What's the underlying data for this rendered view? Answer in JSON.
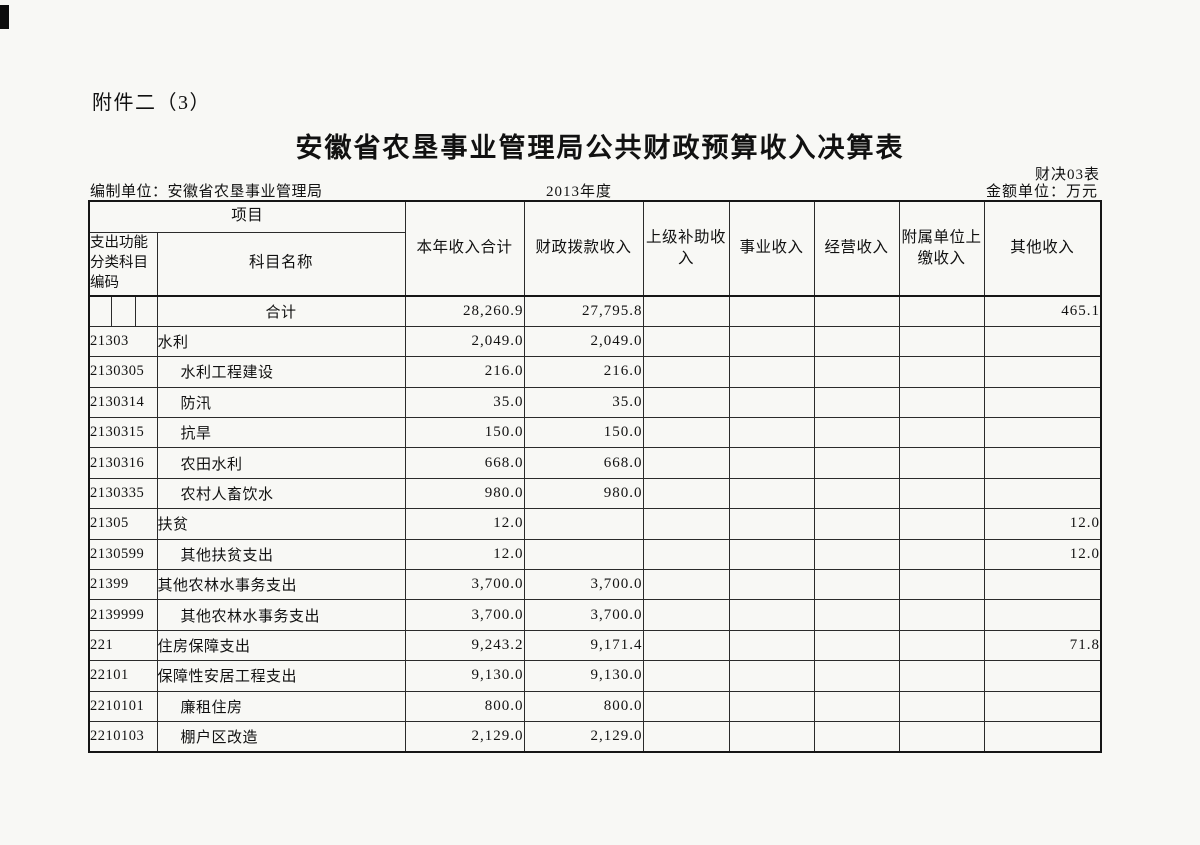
{
  "colors": {
    "paper": "#f8f8f5",
    "ink": "#111111"
  },
  "page": {
    "attachment_label": "附件二（3）",
    "title": "安徽省农垦事业管理局公共财政预算收入决算表",
    "form_code": "财决03表",
    "prepared_by_label": "编制单位：",
    "prepared_by": "安徽省农垦事业管理局",
    "fiscal_year": "2013年度",
    "unit_label": "金额单位：万元"
  },
  "table": {
    "header": {
      "project": "项目",
      "code": "支出功能分类科目编码",
      "subject_name": "科目名称",
      "columns": [
        "本年收入合计",
        "财政拨款收入",
        "上级补助收入",
        "事业收入",
        "经营收入",
        "附属单位上缴收入",
        "其他收入"
      ]
    },
    "rows": [
      {
        "code": "",
        "name": "合计",
        "split_code_cell": true,
        "center_name": true,
        "indent": false,
        "values": [
          "28,260.9",
          "27,795.8",
          "",
          "",
          "",
          "",
          "465.1"
        ]
      },
      {
        "code": "21303",
        "name": "水利",
        "indent": false,
        "values": [
          "2,049.0",
          "2,049.0",
          "",
          "",
          "",
          "",
          ""
        ]
      },
      {
        "code": "2130305",
        "name": "水利工程建设",
        "indent": true,
        "values": [
          "216.0",
          "216.0",
          "",
          "",
          "",
          "",
          ""
        ]
      },
      {
        "code": "2130314",
        "name": "防汛",
        "indent": true,
        "values": [
          "35.0",
          "35.0",
          "",
          "",
          "",
          "",
          ""
        ]
      },
      {
        "code": "2130315",
        "name": "抗旱",
        "indent": true,
        "values": [
          "150.0",
          "150.0",
          "",
          "",
          "",
          "",
          ""
        ]
      },
      {
        "code": "2130316",
        "name": "农田水利",
        "indent": true,
        "values": [
          "668.0",
          "668.0",
          "",
          "",
          "",
          "",
          ""
        ]
      },
      {
        "code": "2130335",
        "name": "农村人畜饮水",
        "indent": true,
        "values": [
          "980.0",
          "980.0",
          "",
          "",
          "",
          "",
          ""
        ]
      },
      {
        "code": "21305",
        "name": "扶贫",
        "indent": false,
        "values": [
          "12.0",
          "",
          "",
          "",
          "",
          "",
          "12.0"
        ]
      },
      {
        "code": "2130599",
        "name": "其他扶贫支出",
        "indent": true,
        "values": [
          "12.0",
          "",
          "",
          "",
          "",
          "",
          "12.0"
        ]
      },
      {
        "code": "21399",
        "name": "其他农林水事务支出",
        "indent": false,
        "values": [
          "3,700.0",
          "3,700.0",
          "",
          "",
          "",
          "",
          ""
        ]
      },
      {
        "code": "2139999",
        "name": "其他农林水事务支出",
        "indent": true,
        "values": [
          "3,700.0",
          "3,700.0",
          "",
          "",
          "",
          "",
          ""
        ]
      },
      {
        "code": "221",
        "name": "住房保障支出",
        "indent": false,
        "values": [
          "9,243.2",
          "9,171.4",
          "",
          "",
          "",
          "",
          "71.8"
        ]
      },
      {
        "code": "22101",
        "name": "保障性安居工程支出",
        "indent": false,
        "values": [
          "9,130.0",
          "9,130.0",
          "",
          "",
          "",
          "",
          ""
        ]
      },
      {
        "code": "2210101",
        "name": "廉租住房",
        "indent": true,
        "values": [
          "800.0",
          "800.0",
          "",
          "",
          "",
          "",
          ""
        ]
      },
      {
        "code": "2210103",
        "name": "棚户区改造",
        "indent": true,
        "values": [
          "2,129.0",
          "2,129.0",
          "",
          "",
          "",
          "",
          ""
        ]
      }
    ]
  }
}
